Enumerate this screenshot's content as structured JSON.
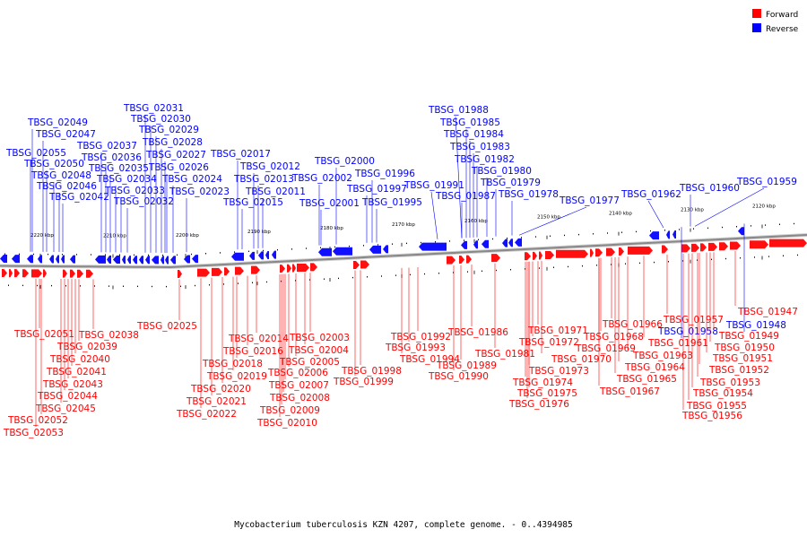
{
  "legend": [
    {
      "label": "Forward",
      "color": "#ff0000"
    },
    {
      "label": "Reverse",
      "color": "#0000ff"
    }
  ],
  "caption": "Mycobacterium tuberculosis KZN 4207, complete genome. - 0..4394985",
  "kbp_ticks": [
    "2220 kbp",
    "2210 kbp",
    "2200 kbp",
    "2190 kbp",
    "2180 kbp",
    "2170 kbp",
    "2160 kbp",
    "2150 kbp",
    "2140 kbp",
    "2130 kbp",
    "2120 kbp"
  ],
  "reverse_labels": [
    "TBSG_02049",
    "TBSG_02047",
    "TBSG_02055",
    "TBSG_02050",
    "TBSG_02048",
    "TBSG_02046",
    "TBSG_02042",
    "TBSG_02037",
    "TBSG_02036",
    "TBSG_02035",
    "TBSG_02034",
    "TBSG_02033",
    "TBSG_02032",
    "TBSG_02031",
    "TBSG_02030",
    "TBSG_02029",
    "TBSG_02028",
    "TBSG_02027",
    "TBSG_02026",
    "TBSG_02024",
    "TBSG_02023",
    "TBSG_02017",
    "TBSG_02012",
    "TBSG_02013",
    "TBSG_02011",
    "TBSG_02015",
    "TBSG_02000",
    "TBSG_02002",
    "TBSG_02001",
    "TBSG_01996",
    "TBSG_01997",
    "TBSG_01995",
    "TBSG_01991",
    "TBSG_01988",
    "TBSG_01985",
    "TBSG_01984",
    "TBSG_01983",
    "TBSG_01982",
    "TBSG_01980",
    "TBSG_01979",
    "TBSG_01987",
    "TBSG_01978",
    "TBSG_01977",
    "TBSG_01962",
    "TBSG_01960",
    "TBSG_01959",
    "TBSG_01958",
    "TBSG_01948"
  ],
  "forward_labels": [
    "TBSG_02038",
    "TBSG_02025",
    "TBSG_02051",
    "TBSG_02039",
    "TBSG_02040",
    "TBSG_02041",
    "TBSG_02043",
    "TBSG_02044",
    "TBSG_02045",
    "TBSG_02052",
    "TBSG_02053",
    "TBSG_02014",
    "TBSG_02016",
    "TBSG_02018",
    "TBSG_02019",
    "TBSG_02020",
    "TBSG_02021",
    "TBSG_02022",
    "TBSG_02003",
    "TBSG_02004",
    "TBSG_02005",
    "TBSG_02006",
    "TBSG_02007",
    "TBSG_02008",
    "TBSG_02009",
    "TBSG_02010",
    "TBSG_01998",
    "TBSG_01999",
    "TBSG_01992",
    "TBSG_01993",
    "TBSG_01994",
    "TBSG_01986",
    "TBSG_01989",
    "TBSG_01990",
    "TBSG_01981",
    "TBSG_01971",
    "TBSG_01972",
    "TBSG_01973",
    "TBSG_01974",
    "TBSG_01975",
    "TBSG_01976",
    "TBSG_01970",
    "TBSG_01966",
    "TBSG_01968",
    "TBSG_01969",
    "TBSG_01967",
    "TBSG_01965",
    "TBSG_01964",
    "TBSG_01963",
    "TBSG_01961",
    "TBSG_01957",
    "TBSG_01947",
    "TBSG_01949",
    "TBSG_01950",
    "TBSG_01951",
    "TBSG_01952",
    "TBSG_01953",
    "TBSG_01954",
    "TBSG_01955",
    "TBSG_01956"
  ]
}
